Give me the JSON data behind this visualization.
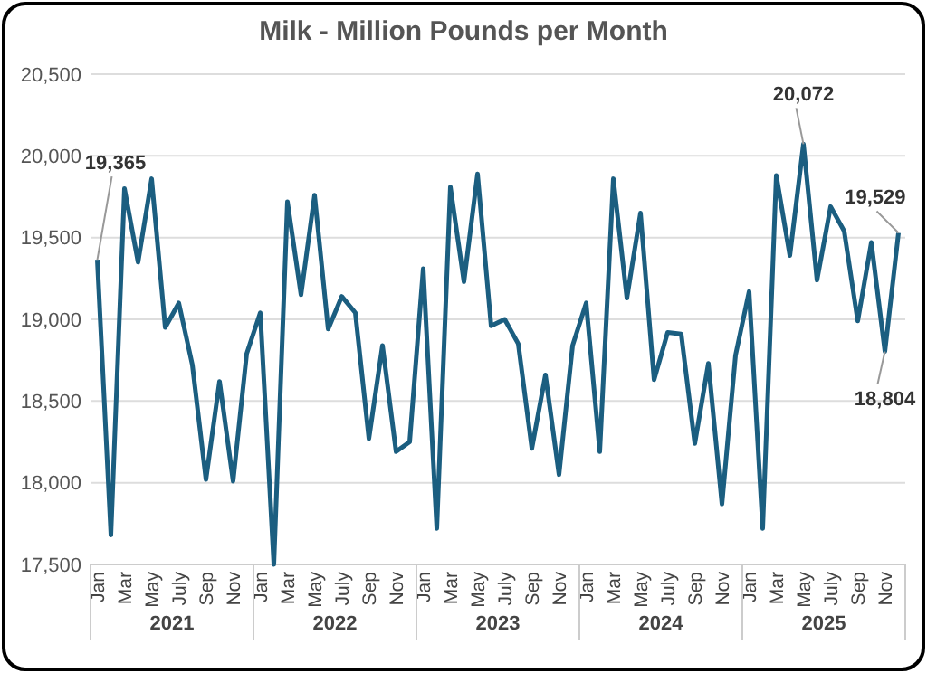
{
  "chart_data": {
    "type": "line",
    "title": "Milk - Million Pounds per Month",
    "categories": [
      "Jan",
      null,
      "Mar",
      null,
      "May",
      null,
      "July",
      null,
      "Sep",
      null,
      "Nov",
      null,
      "Jan",
      null,
      "Mar",
      null,
      "May",
      null,
      "July",
      null,
      "Sep",
      null,
      "Nov",
      null,
      "Jan",
      null,
      "Mar",
      null,
      "May",
      null,
      "July",
      null,
      "Sep",
      null,
      "Nov",
      null,
      "Jan",
      null,
      "Mar",
      null,
      "May",
      null,
      "July",
      null,
      "Sep",
      null,
      "Nov",
      null,
      "Jan",
      null,
      "Mar",
      null,
      "May",
      null,
      "July",
      null,
      "Sep",
      null,
      "Nov",
      null
    ],
    "series": [
      {
        "color": "#1b5e80",
        "values": [
          19365,
          17680,
          19800,
          19350,
          19860,
          18950,
          19100,
          18720,
          18020,
          18620,
          18010,
          18790,
          19040,
          17500,
          19720,
          19150,
          19760,
          18940,
          19140,
          19040,
          18270,
          18840,
          18190,
          18250,
          19310,
          17720,
          19810,
          19230,
          19890,
          18960,
          19000,
          18850,
          18210,
          18660,
          18050,
          18840,
          19100,
          18190,
          19860,
          19130,
          19650,
          18630,
          18920,
          18910,
          18240,
          18730,
          17870,
          18780,
          19170,
          17720,
          19880,
          19390,
          20072,
          19240,
          19690,
          19540,
          18990,
          19470,
          18804,
          19529
        ],
        "value_labels": [
          "19,365",
          null,
          null,
          null,
          null,
          null,
          null,
          null,
          null,
          null,
          null,
          null,
          null,
          null,
          null,
          null,
          null,
          null,
          null,
          null,
          null,
          null,
          null,
          null,
          null,
          null,
          null,
          null,
          null,
          null,
          null,
          null,
          null,
          null,
          null,
          null,
          null,
          null,
          null,
          null,
          null,
          null,
          null,
          null,
          null,
          null,
          null,
          null,
          null,
          null,
          null,
          null,
          "20,072",
          null,
          null,
          null,
          null,
          null,
          "18,804",
          "19,529"
        ]
      }
    ],
    "annotations": [
      "2021",
      "2022",
      "2023",
      "2024",
      "2025"
    ],
    "ylim": [
      17500,
      20500
    ],
    "yticks": [
      {
        "value": 17500,
        "label": "17,500"
      },
      {
        "value": 18000,
        "label": "18,000"
      },
      {
        "value": 18500,
        "label": "18,500"
      },
      {
        "value": 19000,
        "label": "19,000"
      },
      {
        "value": 19500,
        "label": "19,500"
      },
      {
        "value": 20000,
        "label": "20,000"
      },
      {
        "value": 20500,
        "label": "20,500"
      }
    ],
    "grid": "y"
  }
}
